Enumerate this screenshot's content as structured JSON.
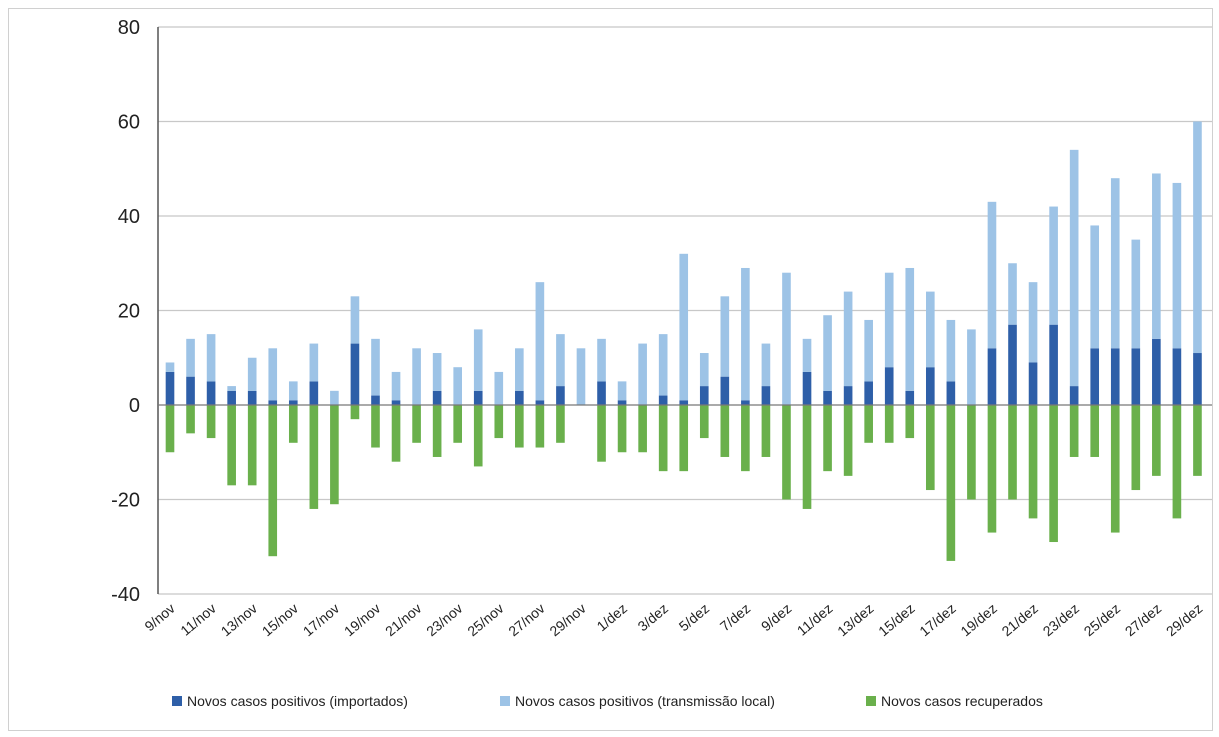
{
  "chart_data": {
    "type": "bar",
    "stacked": true,
    "title": "",
    "xlabel": "",
    "ylabel": "",
    "ylim": [
      -40,
      80
    ],
    "yticks": [
      80,
      60,
      40,
      20,
      0,
      -20,
      -40
    ],
    "yticklabels": [
      "80",
      "60",
      "40",
      "20",
      "0",
      "-20",
      "-40"
    ],
    "grid": true,
    "legend_position": "bottom",
    "categories": [
      "9/nov",
      "10/nov",
      "11/nov",
      "12/nov",
      "13/nov",
      "14/nov",
      "15/nov",
      "16/nov",
      "17/nov",
      "18/nov",
      "19/nov",
      "20/nov",
      "21/nov",
      "22/nov",
      "23/nov",
      "24/nov",
      "25/nov",
      "26/nov",
      "27/nov",
      "28/nov",
      "29/nov",
      "30/nov",
      "1/dez",
      "2/dez",
      "3/dez",
      "4/dez",
      "5/dez",
      "6/dez",
      "7/dez",
      "8/dez",
      "9/dez",
      "10/dez",
      "11/dez",
      "12/dez",
      "13/dez",
      "14/dez",
      "15/dez",
      "16/dez",
      "17/dez",
      "18/dez",
      "19/dez",
      "20/dez",
      "21/dez",
      "22/dez",
      "23/dez",
      "24/dez",
      "25/dez",
      "26/dez",
      "27/dez",
      "28/dez",
      "29/dez"
    ],
    "xticklabels": [
      "9/nov",
      "",
      "11/nov",
      "",
      "13/nov",
      "",
      "15/nov",
      "",
      "17/nov",
      "",
      "19/nov",
      "",
      "21/nov",
      "",
      "23/nov",
      "",
      "25/nov",
      "",
      "27/nov",
      "",
      "29/nov",
      "",
      "1/dez",
      "",
      "3/dez",
      "",
      "5/dez",
      "",
      "7/dez",
      "",
      "9/dez",
      "",
      "11/dez",
      "",
      "13/dez",
      "",
      "15/dez",
      "",
      "17/dez",
      "",
      "19/dez",
      "",
      "21/dez",
      "",
      "23/dez",
      "",
      "25/dez",
      "",
      "27/dez",
      "",
      "29/dez"
    ],
    "series": [
      {
        "name": "Novos casos positivos (importados)",
        "color": "#2e5fa8",
        "values": [
          7,
          6,
          5,
          3,
          3,
          1,
          1,
          5,
          0,
          13,
          2,
          1,
          0,
          3,
          0,
          3,
          0,
          3,
          1,
          4,
          0,
          5,
          1,
          0,
          2,
          1,
          4,
          6,
          1,
          4,
          0,
          7,
          3,
          4,
          5,
          8,
          3,
          8,
          5,
          0,
          12,
          17,
          9,
          17,
          4,
          12,
          12,
          12,
          14,
          12,
          11
        ]
      },
      {
        "name": "Novos casos positivos (transmissão local)",
        "color": "#9dc3e6",
        "values": [
          2,
          8,
          10,
          1,
          7,
          11,
          4,
          8,
          3,
          10,
          12,
          6,
          12,
          8,
          8,
          13,
          7,
          9,
          25,
          11,
          12,
          9,
          4,
          13,
          13,
          31,
          7,
          17,
          28,
          9,
          28,
          7,
          16,
          20,
          13,
          20,
          26,
          16,
          13,
          16,
          31,
          13,
          17,
          25,
          50,
          26,
          36,
          23,
          35,
          35,
          49
        ]
      },
      {
        "name": "Novos casos recuperados",
        "color": "#6ab04c",
        "values": [
          -10,
          -6,
          -7,
          -17,
          -17,
          -32,
          -8,
          -22,
          -21,
          -3,
          -9,
          -12,
          -8,
          -11,
          -8,
          -13,
          -7,
          -9,
          -9,
          -8,
          0,
          -12,
          -10,
          -10,
          -14,
          -14,
          -7,
          -11,
          -14,
          -11,
          -20,
          -22,
          -14,
          -15,
          -8,
          -8,
          -7,
          -18,
          -33,
          -20,
          -27,
          -20,
          -24,
          -29,
          -11,
          -11,
          -27,
          -18,
          -15,
          -24,
          -15
        ]
      }
    ]
  }
}
